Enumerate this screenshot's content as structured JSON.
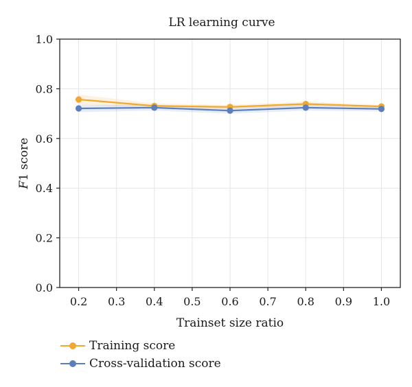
{
  "chart_data": {
    "type": "line",
    "title": "LR learning curve",
    "xlabel": "Trainset size ratio",
    "ylabel_italic": "F",
    "ylabel_rest": "1 score",
    "xlim": [
      0.15,
      1.05
    ],
    "ylim": [
      0.0,
      1.0
    ],
    "x_ticks": [
      "0.2",
      "0.3",
      "0.4",
      "0.5",
      "0.6",
      "0.7",
      "0.8",
      "0.9",
      "1.0"
    ],
    "y_ticks": [
      "0.0",
      "0.2",
      "0.4",
      "0.6",
      "0.8",
      "1.0"
    ],
    "grid": true,
    "legend_position": "below",
    "x": [
      0.2,
      0.4,
      0.6,
      0.8,
      1.0
    ],
    "series": [
      {
        "name": "Training score",
        "color": "#f0a830",
        "values": [
          0.757,
          0.731,
          0.727,
          0.739,
          0.729
        ],
        "band": [
          0.02,
          0.01,
          0.008,
          0.01,
          0.006
        ]
      },
      {
        "name": "Cross-validation score",
        "color": "#5b7fbd",
        "values": [
          0.721,
          0.724,
          0.712,
          0.724,
          0.719
        ],
        "band": [
          0.015,
          0.012,
          0.012,
          0.012,
          0.01
        ]
      }
    ]
  }
}
